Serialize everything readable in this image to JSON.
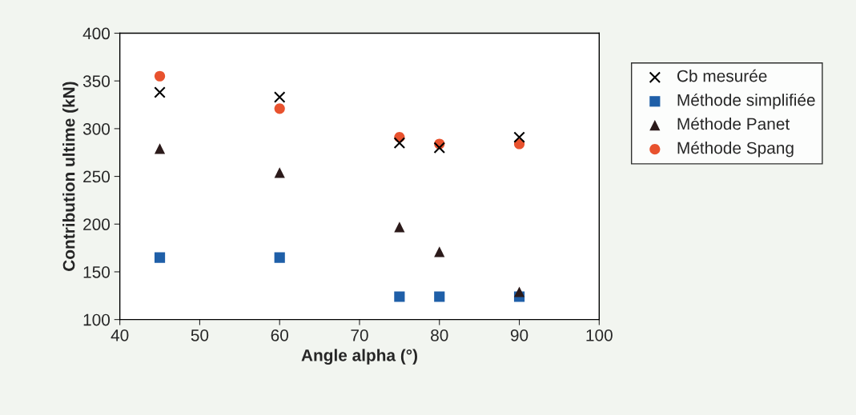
{
  "chart_data": {
    "type": "scatter",
    "xlabel": "Angle alpha (°)",
    "ylabel": "Contribution ultime (kN)",
    "xlim": [
      40,
      100
    ],
    "xticks": [
      40,
      50,
      60,
      70,
      80,
      90,
      100
    ],
    "ylim": [
      100,
      400
    ],
    "yticks": [
      100,
      150,
      200,
      250,
      300,
      350,
      400
    ],
    "x": [
      45,
      60,
      75,
      80,
      90
    ],
    "grid": false,
    "legend": "right",
    "series": [
      {
        "name": "Cb mesurée",
        "color": "#000000",
        "marker": "cross",
        "values": [
          338,
          333,
          285,
          280,
          291
        ]
      },
      {
        "name": "Méthode simplifiée",
        "color": "#1f5fa8",
        "marker": "square",
        "values": [
          165,
          165,
          124,
          124,
          124
        ]
      },
      {
        "name": "Méthode Panet",
        "color": "#2b1a1a",
        "marker": "triangle",
        "values": [
          279,
          254,
          197,
          171,
          129
        ]
      },
      {
        "name": "Méthode Spang",
        "color": "#e8522e",
        "marker": "circle",
        "values": [
          355,
          321,
          291,
          284,
          284
        ]
      }
    ]
  }
}
